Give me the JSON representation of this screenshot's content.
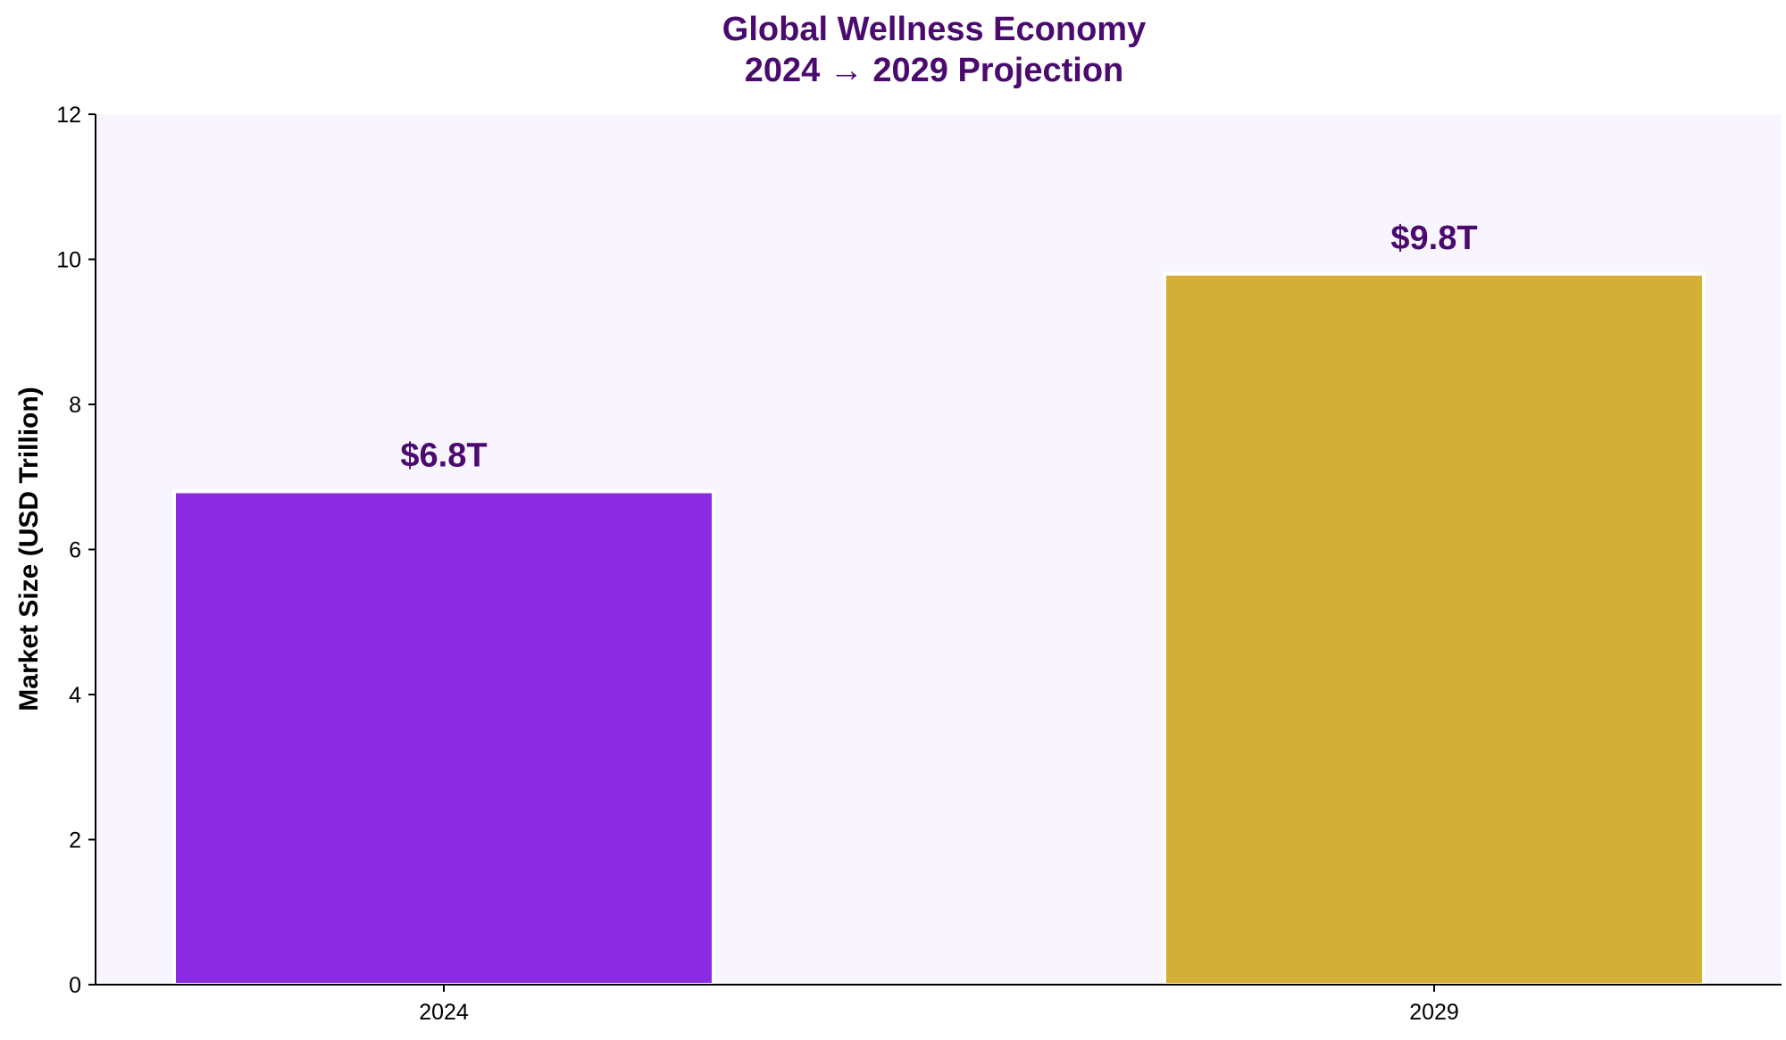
{
  "chart_data": {
    "type": "bar",
    "title_lines": [
      "Global Wellness Economy",
      "2024 → 2029 Projection"
    ],
    "xlabel": "",
    "ylabel": "Market Size (USD Trillion)",
    "categories": [
      "2024",
      "2029"
    ],
    "values": [
      6.8,
      9.8
    ],
    "data_labels": [
      "$6.8T",
      "$9.8T"
    ],
    "ylim": [
      0,
      12
    ],
    "yticks": [
      0,
      2,
      4,
      6,
      8,
      10,
      12
    ],
    "grid": false,
    "legend": "none",
    "colors": {
      "bars": [
        "#8A2BE2",
        "#D4AF37"
      ],
      "title": "#4B0A6E",
      "data_label": "#4B0A6E",
      "plot_background": "#F8F5FF",
      "bar_edge": "#FFFFFF"
    }
  }
}
